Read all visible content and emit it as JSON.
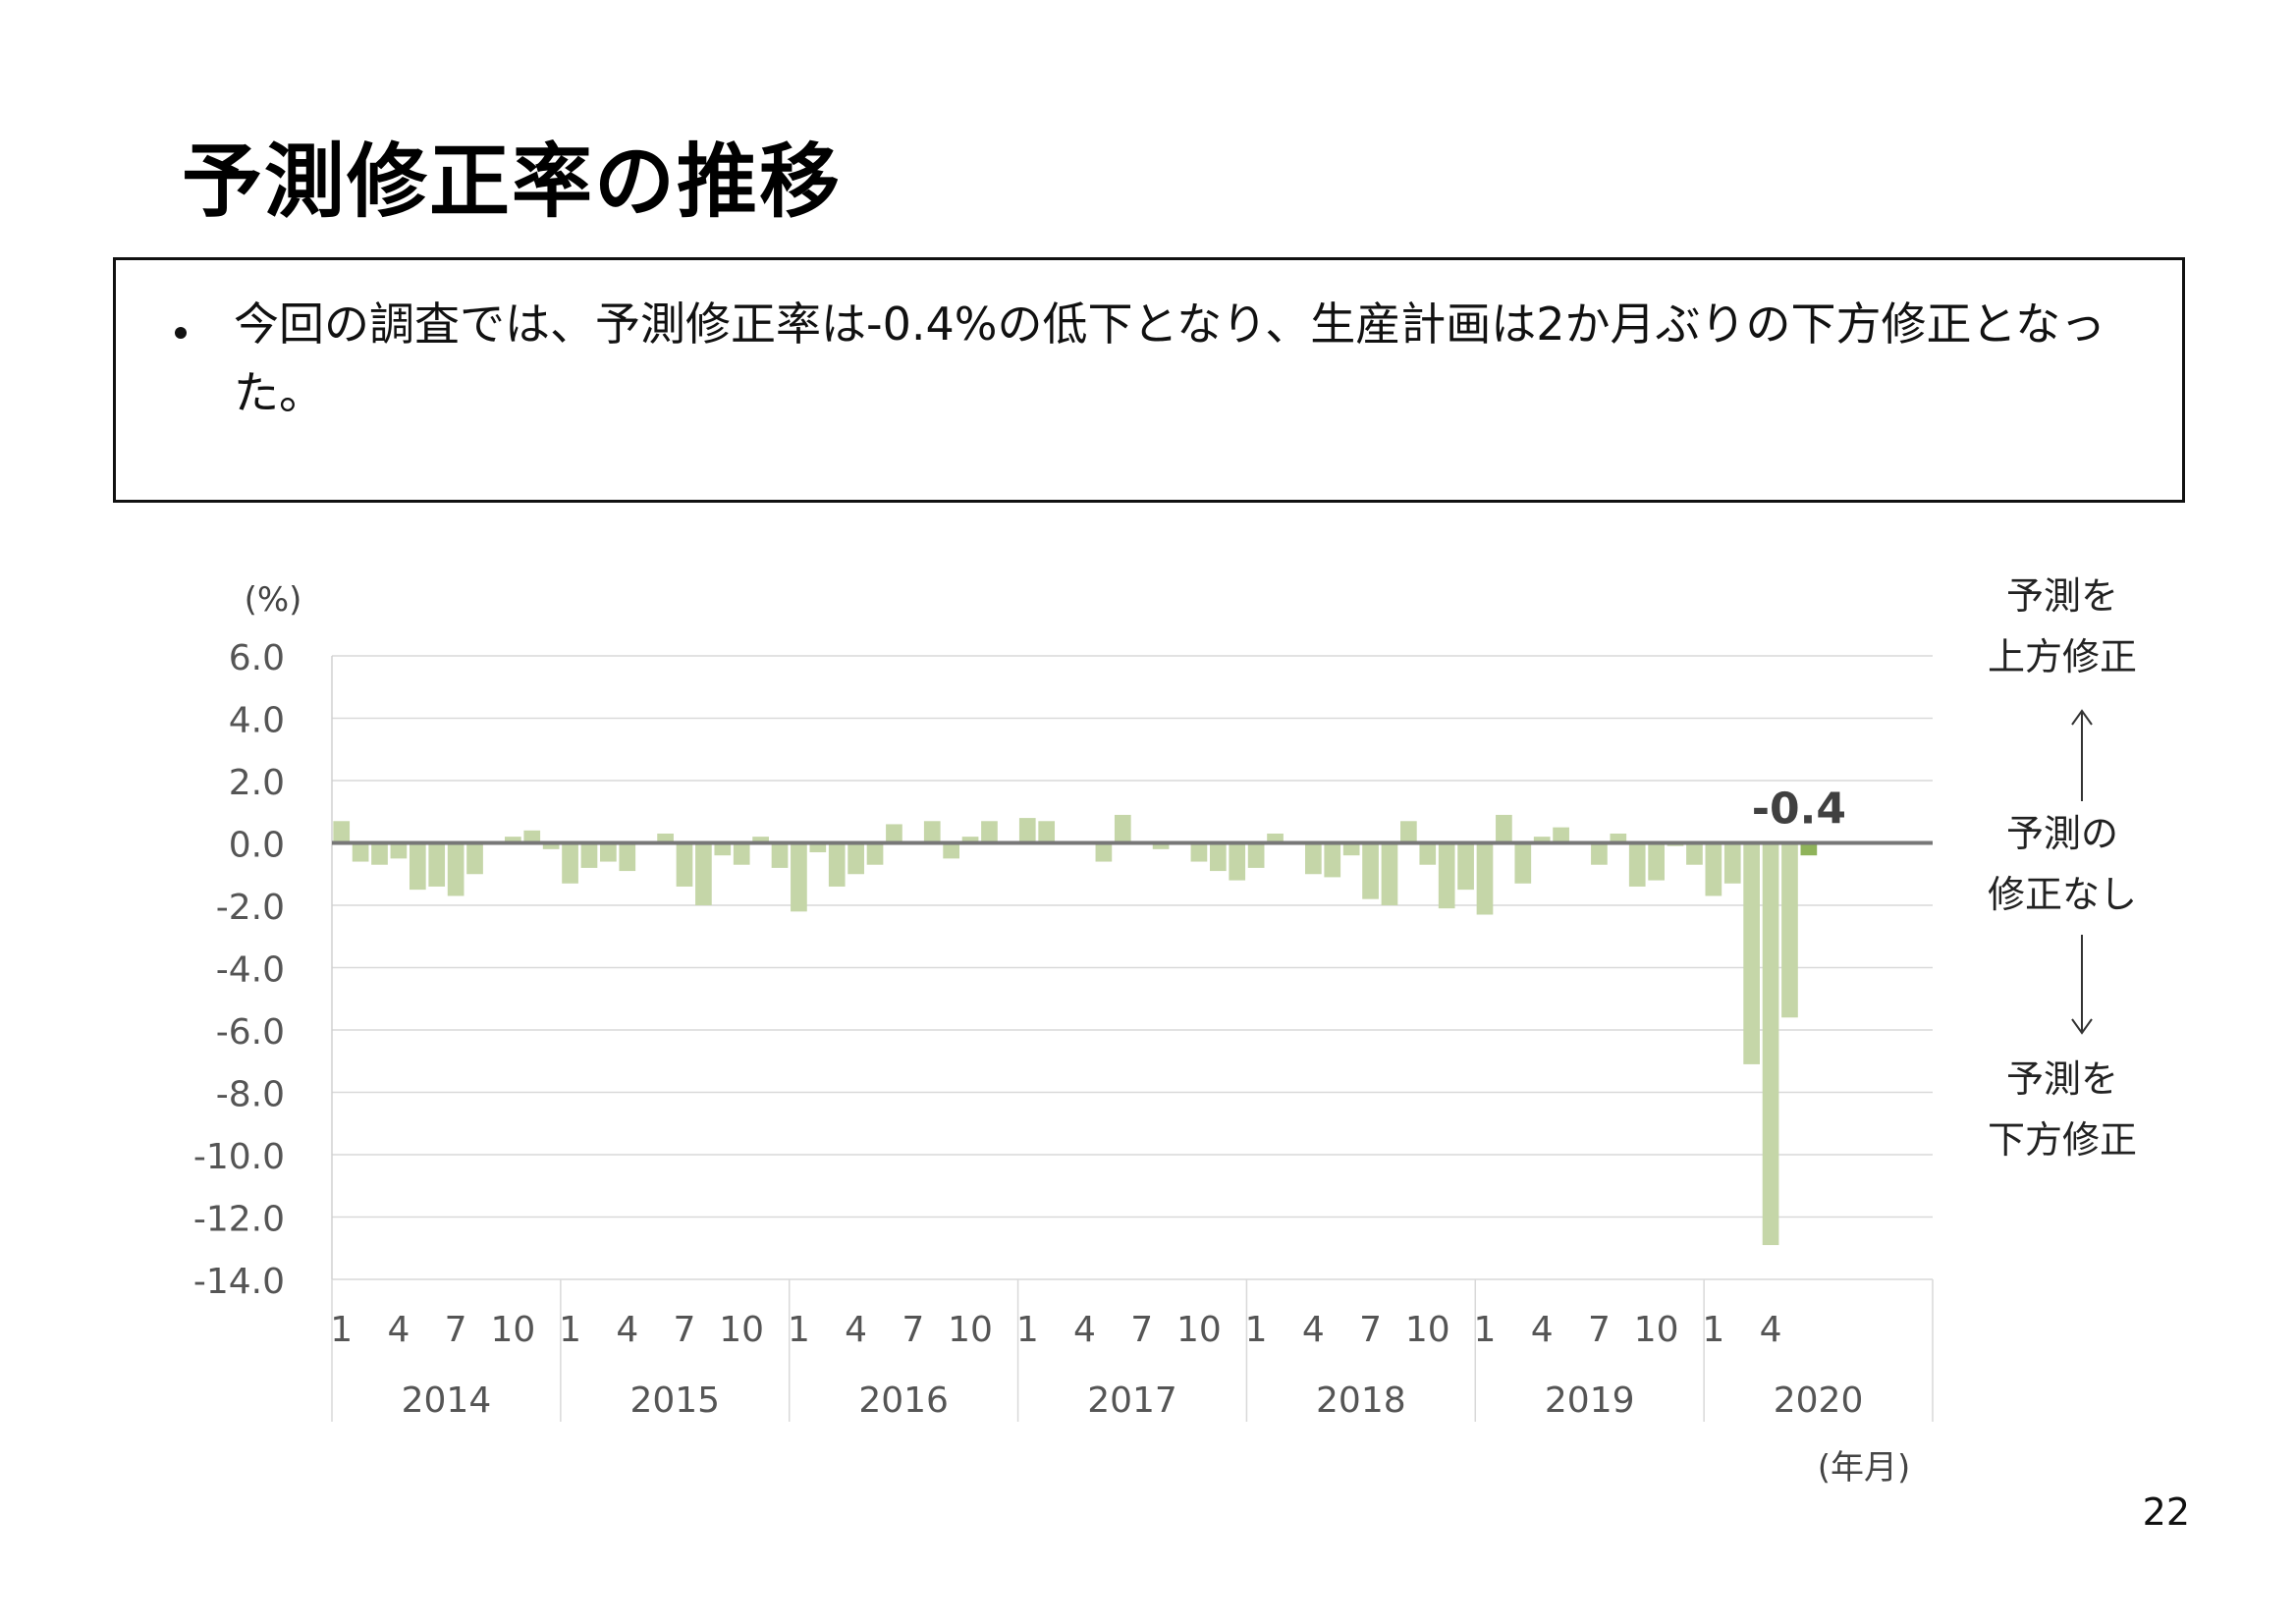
{
  "page": {
    "title": "予測修正率の推移",
    "summary": "今回の調査では、予測修正率は-0.4%の低下となり、生産計画は2か月ぶりの下方修正となった。",
    "page_number": "22",
    "side_labels": {
      "upward": "予測を\n上方修正",
      "none": "予測の\n修正なし",
      "downward": "予測を\n下方修正"
    }
  },
  "chart_data": {
    "type": "bar",
    "y_unit_label": "(%)",
    "x_unit_label": "(年月)",
    "ylim": [
      -14.0,
      6.0
    ],
    "y_ticks": [
      "6.0",
      "4.0",
      "2.0",
      "0.0",
      "-2.0",
      "-4.0",
      "-6.0",
      "-8.0",
      "-10.0",
      "-12.0",
      "-14.0"
    ],
    "y_tick_values": [
      6,
      4,
      2,
      0,
      -2,
      -4,
      -6,
      -8,
      -10,
      -12,
      -14
    ],
    "month_tick_labels": [
      "1",
      "4",
      "7",
      "10"
    ],
    "years": [
      "2014",
      "2015",
      "2016",
      "2017",
      "2018",
      "2019",
      "2020"
    ],
    "grid": true,
    "highlight_label": "-0.4",
    "colors": {
      "bar": "#c5d6a8",
      "highlight": "#8fb35a",
      "zero_line": "#777777",
      "grid": "#d9d9d9"
    },
    "series": [
      {
        "values": [
          0.7,
          -0.6,
          -0.7,
          -0.5,
          -1.5,
          -1.4,
          -1.7,
          -1.0,
          0.0,
          0.2,
          0.4,
          -0.2,
          -1.3,
          -0.8,
          -0.6,
          -0.9,
          0.0,
          0.3,
          -1.4,
          -2.0,
          -0.4,
          -0.7,
          0.2,
          -0.8,
          -2.2,
          -0.3,
          -1.4,
          -1.0,
          -0.7,
          0.6,
          0.0,
          0.7,
          -0.5,
          0.2,
          0.7,
          0.0,
          0.8,
          0.7,
          0.0,
          0.0,
          -0.6,
          0.9,
          0.0,
          -0.2,
          0.0,
          -0.6,
          -0.9,
          -1.2,
          -0.8,
          0.3,
          0.0,
          -1.0,
          -1.1,
          -0.4,
          -1.8,
          -2.0,
          0.7,
          -0.7,
          -2.1,
          -1.5,
          -2.3,
          0.9,
          -1.3,
          0.2,
          0.5,
          0.0,
          -0.7,
          0.3,
          -1.4,
          -1.2,
          -0.1,
          -0.7,
          -1.7,
          -1.3,
          -7.1,
          -12.9,
          -5.6,
          -0.4
        ]
      }
    ]
  }
}
